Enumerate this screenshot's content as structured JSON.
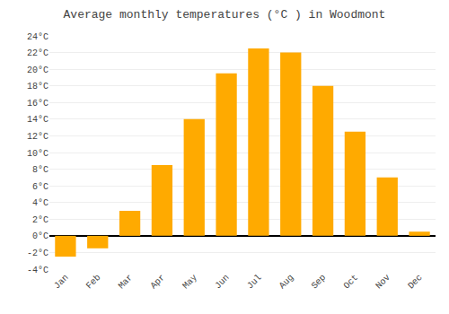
{
  "chart_data": {
    "type": "bar",
    "title": "Average monthly temperatures (°C ) in Woodmont",
    "categories": [
      "Jan",
      "Feb",
      "Mar",
      "Apr",
      "May",
      "Jun",
      "Jul",
      "Aug",
      "Sep",
      "Oct",
      "Nov",
      "Dec"
    ],
    "values": [
      -2.5,
      -1.5,
      3.0,
      8.5,
      14.0,
      19.5,
      22.5,
      22.0,
      18.0,
      12.5,
      7.0,
      0.5
    ],
    "color": "#FFAA00",
    "ylim": [
      -4,
      24
    ],
    "yticks": [
      {
        "value": -4,
        "label": "-4°C"
      },
      {
        "value": -2,
        "label": "-2°C"
      },
      {
        "value": 0,
        "label": "0°C"
      },
      {
        "value": 2,
        "label": "2°C"
      },
      {
        "value": 4,
        "label": "4°C"
      },
      {
        "value": 6,
        "label": "6°C"
      },
      {
        "value": 8,
        "label": "8°C"
      },
      {
        "value": 10,
        "label": "10°C"
      },
      {
        "value": 12,
        "label": "12°C"
      },
      {
        "value": 14,
        "label": "14°C"
      },
      {
        "value": 16,
        "label": "16°C"
      },
      {
        "value": 18,
        "label": "18°C"
      },
      {
        "value": 20,
        "label": "20°C"
      },
      {
        "value": 22,
        "label": "22°C"
      },
      {
        "value": 24,
        "label": "24°C"
      }
    ],
    "grid": true
  }
}
